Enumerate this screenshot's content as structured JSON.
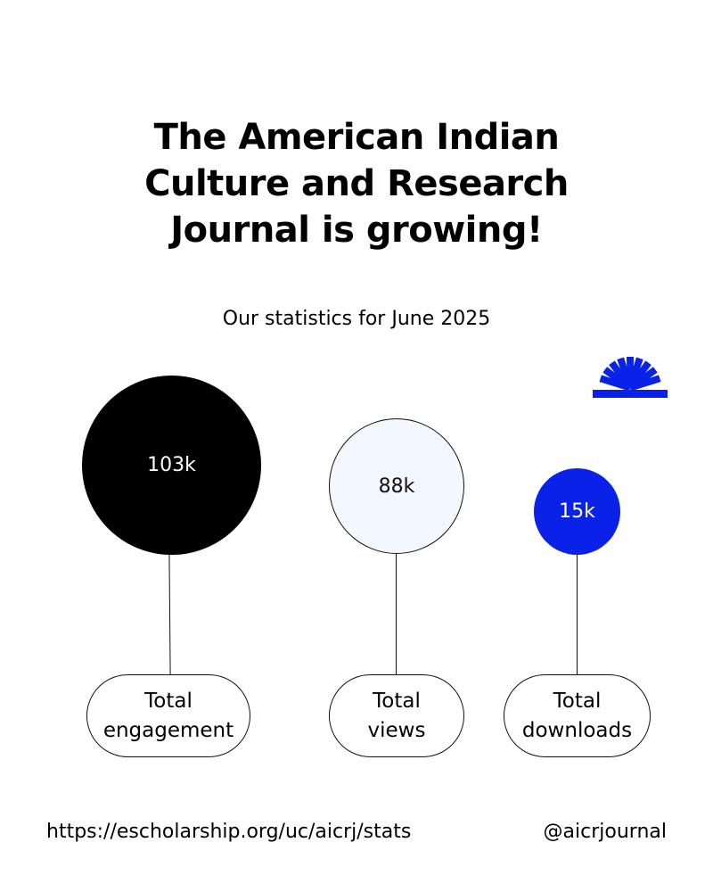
{
  "title": {
    "line1": "The American Indian",
    "line2": "Culture and Research",
    "line3": "Journal is growing!"
  },
  "subtitle": "Our statistics for June 2025",
  "stats": [
    {
      "value": "103k",
      "label_line1": "Total",
      "label_line2": "engagement"
    },
    {
      "value": "88k",
      "label_line1": "Total",
      "label_line2": "views"
    },
    {
      "value": "15k",
      "label_line1": "Total",
      "label_line2": "downloads"
    }
  ],
  "footer": {
    "url": "https://escholarship.org/uc/aicrj/stats",
    "handle": "@aicrjournal"
  },
  "colors": {
    "accent_blue": "#0a21e8",
    "black": "#000000",
    "light_bubble": "#f3f7fe"
  },
  "icons": {
    "decoration": "sunburst-icon"
  }
}
